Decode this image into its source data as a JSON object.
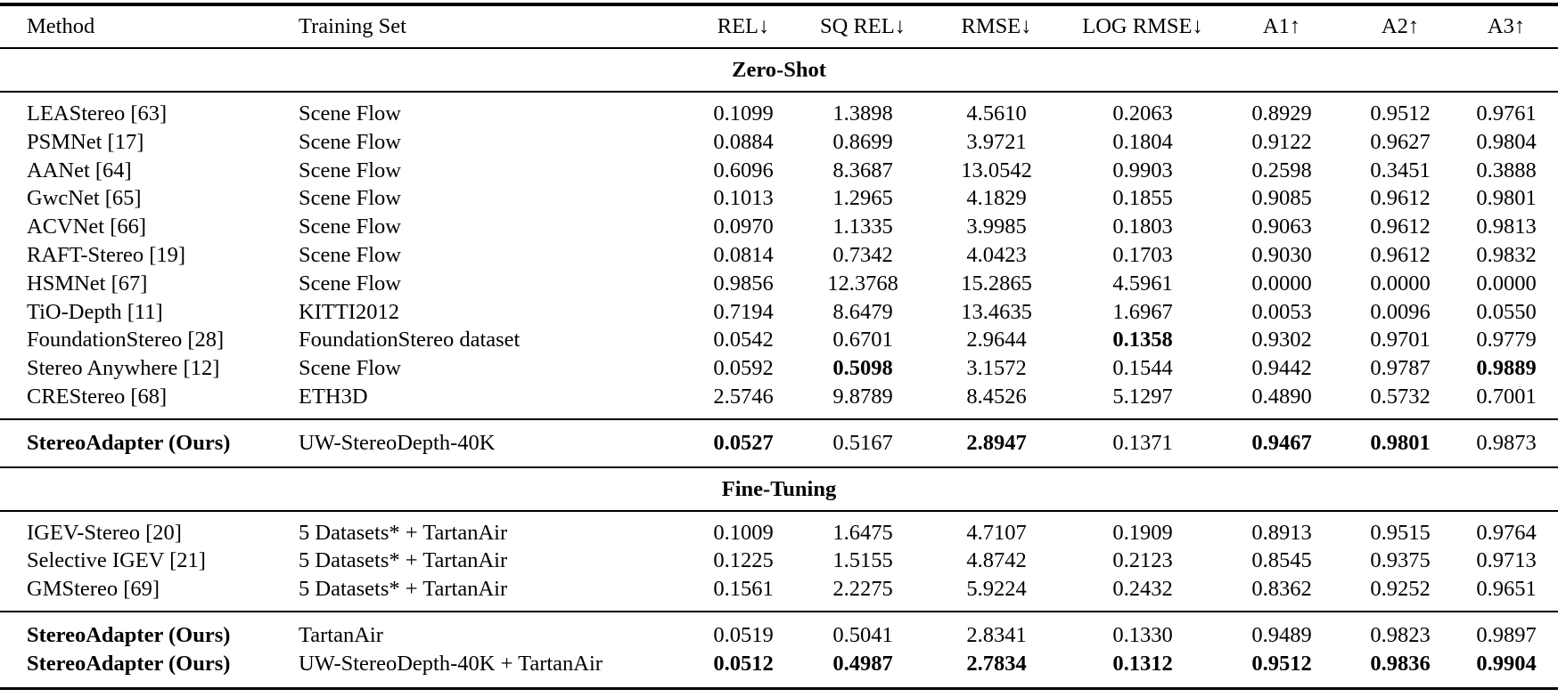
{
  "table": {
    "columns": [
      {
        "label": "Method"
      },
      {
        "label": "Training Set"
      },
      {
        "label": "REL↓"
      },
      {
        "label": "SQ REL↓"
      },
      {
        "label": "RMSE↓"
      },
      {
        "label": "LOG RMSE↓"
      },
      {
        "label": "A1↑"
      },
      {
        "label": "A2↑"
      },
      {
        "label": "A3↑"
      }
    ],
    "sections": [
      {
        "title": "Zero-Shot",
        "groups": [
          {
            "rows": [
              {
                "method": "LEAStereo [63]",
                "bold_method": false,
                "training_set": "Scene Flow",
                "values": [
                  "0.1099",
                  "1.3898",
                  "4.5610",
                  "0.2063",
                  "0.8929",
                  "0.9512",
                  "0.9761"
                ],
                "bold": [
                  false,
                  false,
                  false,
                  false,
                  false,
                  false,
                  false
                ]
              },
              {
                "method": "PSMNet [17]",
                "bold_method": false,
                "training_set": "Scene Flow",
                "values": [
                  "0.0884",
                  "0.8699",
                  "3.9721",
                  "0.1804",
                  "0.9122",
                  "0.9627",
                  "0.9804"
                ],
                "bold": [
                  false,
                  false,
                  false,
                  false,
                  false,
                  false,
                  false
                ]
              },
              {
                "method": "AANet [64]",
                "bold_method": false,
                "training_set": "Scene Flow",
                "values": [
                  "0.6096",
                  "8.3687",
                  "13.0542",
                  "0.9903",
                  "0.2598",
                  "0.3451",
                  "0.3888"
                ],
                "bold": [
                  false,
                  false,
                  false,
                  false,
                  false,
                  false,
                  false
                ]
              },
              {
                "method": "GwcNet [65]",
                "bold_method": false,
                "training_set": "Scene Flow",
                "values": [
                  "0.1013",
                  "1.2965",
                  "4.1829",
                  "0.1855",
                  "0.9085",
                  "0.9612",
                  "0.9801"
                ],
                "bold": [
                  false,
                  false,
                  false,
                  false,
                  false,
                  false,
                  false
                ]
              },
              {
                "method": "ACVNet [66]",
                "bold_method": false,
                "training_set": "Scene Flow",
                "values": [
                  "0.0970",
                  "1.1335",
                  "3.9985",
                  "0.1803",
                  "0.9063",
                  "0.9612",
                  "0.9813"
                ],
                "bold": [
                  false,
                  false,
                  false,
                  false,
                  false,
                  false,
                  false
                ]
              },
              {
                "method": "RAFT-Stereo [19]",
                "bold_method": false,
                "training_set": "Scene Flow",
                "values": [
                  "0.0814",
                  "0.7342",
                  "4.0423",
                  "0.1703",
                  "0.9030",
                  "0.9612",
                  "0.9832"
                ],
                "bold": [
                  false,
                  false,
                  false,
                  false,
                  false,
                  false,
                  false
                ]
              },
              {
                "method": "HSMNet [67]",
                "bold_method": false,
                "training_set": "Scene Flow",
                "values": [
                  "0.9856",
                  "12.3768",
                  "15.2865",
                  "4.5961",
                  "0.0000",
                  "0.0000",
                  "0.0000"
                ],
                "bold": [
                  false,
                  false,
                  false,
                  false,
                  false,
                  false,
                  false
                ]
              },
              {
                "method": "TiO-Depth [11]",
                "bold_method": false,
                "training_set": "KITTI2012",
                "values": [
                  "0.7194",
                  "8.6479",
                  "13.4635",
                  "1.6967",
                  "0.0053",
                  "0.0096",
                  "0.0550"
                ],
                "bold": [
                  false,
                  false,
                  false,
                  false,
                  false,
                  false,
                  false
                ]
              },
              {
                "method": "FoundationStereo [28]",
                "bold_method": false,
                "training_set": "FoundationStereo dataset",
                "values": [
                  "0.0542",
                  "0.6701",
                  "2.9644",
                  "0.1358",
                  "0.9302",
                  "0.9701",
                  "0.9779"
                ],
                "bold": [
                  false,
                  false,
                  false,
                  true,
                  false,
                  false,
                  false
                ]
              },
              {
                "method": "Stereo Anywhere [12]",
                "bold_method": false,
                "training_set": "Scene Flow",
                "values": [
                  "0.0592",
                  "0.5098",
                  "3.1572",
                  "0.1544",
                  "0.9442",
                  "0.9787",
                  "0.9889"
                ],
                "bold": [
                  false,
                  true,
                  false,
                  false,
                  false,
                  false,
                  true
                ]
              },
              {
                "method": "CREStereo [68]",
                "bold_method": false,
                "training_set": "ETH3D",
                "values": [
                  "2.5746",
                  "9.8789",
                  "8.4526",
                  "5.1297",
                  "0.4890",
                  "0.5732",
                  "0.7001"
                ],
                "bold": [
                  false,
                  false,
                  false,
                  false,
                  false,
                  false,
                  false
                ]
              }
            ]
          },
          {
            "rows": [
              {
                "method": "StereoAdapter (Ours)",
                "bold_method": true,
                "training_set": "UW-StereoDepth-40K",
                "values": [
                  "0.0527",
                  "0.5167",
                  "2.8947",
                  "0.1371",
                  "0.9467",
                  "0.9801",
                  "0.9873"
                ],
                "bold": [
                  true,
                  false,
                  true,
                  false,
                  true,
                  true,
                  false
                ]
              }
            ]
          }
        ]
      },
      {
        "title": "Fine-Tuning",
        "groups": [
          {
            "rows": [
              {
                "method": "IGEV-Stereo [20]",
                "bold_method": false,
                "training_set": "5 Datasets* + TartanAir",
                "values": [
                  "0.1009",
                  "1.6475",
                  "4.7107",
                  "0.1909",
                  "0.8913",
                  "0.9515",
                  "0.9764"
                ],
                "bold": [
                  false,
                  false,
                  false,
                  false,
                  false,
                  false,
                  false
                ]
              },
              {
                "method": "Selective IGEV [21]",
                "bold_method": false,
                "training_set": "5 Datasets* + TartanAir",
                "values": [
                  "0.1225",
                  "1.5155",
                  "4.8742",
                  "0.2123",
                  "0.8545",
                  "0.9375",
                  "0.9713"
                ],
                "bold": [
                  false,
                  false,
                  false,
                  false,
                  false,
                  false,
                  false
                ]
              },
              {
                "method": "GMStereo [69]",
                "bold_method": false,
                "training_set": "5 Datasets* + TartanAir",
                "values": [
                  "0.1561",
                  "2.2275",
                  "5.9224",
                  "0.2432",
                  "0.8362",
                  "0.9252",
                  "0.9651"
                ],
                "bold": [
                  false,
                  false,
                  false,
                  false,
                  false,
                  false,
                  false
                ]
              }
            ]
          },
          {
            "rows": [
              {
                "method": "StereoAdapter (Ours)",
                "bold_method": true,
                "training_set": "TartanAir",
                "values": [
                  "0.0519",
                  "0.5041",
                  "2.8341",
                  "0.1330",
                  "0.9489",
                  "0.9823",
                  "0.9897"
                ],
                "bold": [
                  false,
                  false,
                  false,
                  false,
                  false,
                  false,
                  false
                ]
              },
              {
                "method": "StereoAdapter (Ours)",
                "bold_method": true,
                "training_set": "UW-StereoDepth-40K + TartanAir",
                "values": [
                  "0.0512",
                  "0.4987",
                  "2.7834",
                  "0.1312",
                  "0.9512",
                  "0.9836",
                  "0.9904"
                ],
                "bold": [
                  true,
                  true,
                  true,
                  true,
                  true,
                  true,
                  true
                ]
              }
            ]
          }
        ]
      }
    ]
  }
}
